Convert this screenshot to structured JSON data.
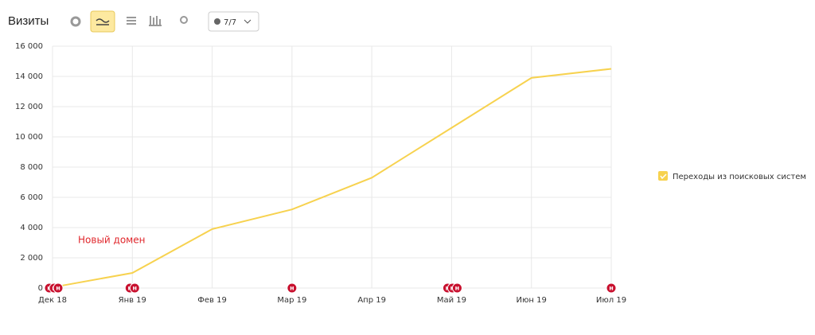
{
  "chart_data": {
    "type": "line",
    "title": "Визиты",
    "segment_filter": "7/7",
    "categories": [
      "Дек 18",
      "Янв 19",
      "Фев 19",
      "Мар 19",
      "Апр 19",
      "Май 19",
      "Июн 19",
      "Июл 19"
    ],
    "series": [
      {
        "name": "Переходы из поисковых систем",
        "color": "#f7d24f",
        "values": [
          50,
          1000,
          3900,
          5200,
          7300,
          10600,
          13900,
          14500
        ]
      }
    ],
    "ylim": [
      0,
      16000
    ],
    "yticks": [
      0,
      {
        "value": 2000,
        "label": "2 000"
      },
      {
        "value": 4000,
        "label": "4 000"
      },
      {
        "value": 6000,
        "label": "6 000"
      },
      {
        "value": 8000,
        "label": "8 000"
      },
      {
        "value": 10000,
        "label": "10 000"
      },
      {
        "value": 12000,
        "label": "12 000"
      },
      {
        "value": 14000,
        "label": "14 000"
      },
      {
        "value": 16000,
        "label": "16 000"
      }
    ],
    "grid": true,
    "legend": "right",
    "annotation": "Новый домен",
    "event_marker_label": "н"
  }
}
